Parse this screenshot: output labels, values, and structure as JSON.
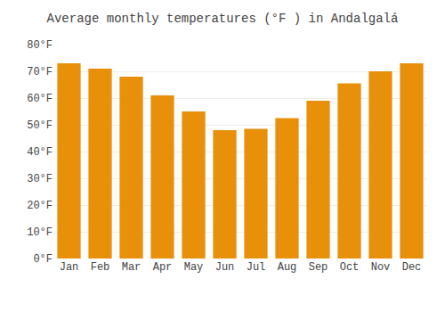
{
  "chart_data": {
    "type": "bar",
    "title": "Average monthly temperatures (°F ) in Andalgalá",
    "categories": [
      "Jan",
      "Feb",
      "Mar",
      "Apr",
      "May",
      "Jun",
      "Jul",
      "Aug",
      "Sep",
      "Oct",
      "Nov",
      "Dec"
    ],
    "values": [
      73,
      71,
      68,
      61,
      55,
      48,
      48.5,
      52.5,
      59,
      65.5,
      70,
      73
    ],
    "color": "#E8900A",
    "ylim": [
      0,
      80
    ],
    "yticks": [
      {
        "value": 0,
        "label": "0°F"
      },
      {
        "value": 10,
        "label": "10°F"
      },
      {
        "value": 20,
        "label": "20°F"
      },
      {
        "value": 30,
        "label": "30°F"
      },
      {
        "value": 40,
        "label": "40°F"
      },
      {
        "value": 50,
        "label": "50°F"
      },
      {
        "value": 60,
        "label": "60°F"
      },
      {
        "value": 70,
        "label": "70°F"
      },
      {
        "value": 80,
        "label": "80°F"
      }
    ],
    "grid": true
  }
}
